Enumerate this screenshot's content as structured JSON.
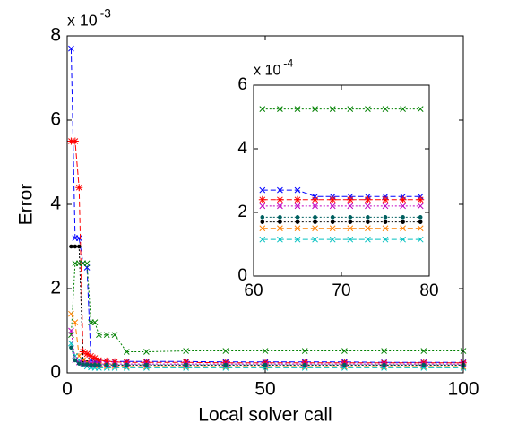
{
  "chart_data": [
    {
      "type": "line",
      "xlabel": "Local solver call",
      "ylabel": "Error",
      "y_multiplier": {
        "base": "x 10",
        "exponent": "-3"
      },
      "xlim": [
        0,
        100
      ],
      "ylim": [
        0,
        8
      ],
      "xticks": [
        0,
        50,
        100
      ],
      "yticks": [
        0,
        2,
        4,
        6,
        8
      ],
      "x": [
        1,
        2,
        3,
        4,
        5,
        6,
        7,
        8,
        10,
        12,
        15,
        20,
        30,
        40,
        50,
        60,
        70,
        80,
        90,
        100
      ],
      "series": [
        {
          "color": "#0000ff",
          "dash": "6,3",
          "marker": "x",
          "values": [
            7.7,
            3.2,
            3.2,
            2.6,
            2.5,
            0.3,
            0.28,
            0.27,
            0.27,
            0.27,
            0.27,
            0.27,
            0.27,
            0.26,
            0.26,
            0.26,
            0.26,
            0.25,
            0.25,
            0.25
          ]
        },
        {
          "color": "#ff0000",
          "dash": "6,3",
          "marker": "star",
          "values": [
            5.5,
            5.5,
            4.4,
            0.5,
            0.45,
            0.4,
            0.35,
            0.3,
            0.28,
            0.26,
            0.25,
            0.25,
            0.25,
            0.24,
            0.24,
            0.24,
            0.24,
            0.24,
            0.24,
            0.24
          ]
        },
        {
          "color": "#008000",
          "dash": "2,2",
          "marker": "x",
          "values": [
            0.9,
            2.6,
            2.6,
            2.6,
            2.6,
            1.2,
            1.2,
            0.9,
            0.9,
            0.9,
            0.5,
            0.5,
            0.52,
            0.52,
            0.52,
            0.52,
            0.52,
            0.52,
            0.52,
            0.52
          ]
        },
        {
          "color": "#000000",
          "dash": "2,2",
          "marker": "dot",
          "values": [
            3.0,
            3.0,
            3.0,
            0.3,
            0.25,
            0.2,
            0.2,
            0.19,
            0.19,
            0.18,
            0.18,
            0.18,
            0.18,
            0.18,
            0.18,
            0.18,
            0.18,
            0.18,
            0.18,
            0.18
          ]
        },
        {
          "color": "#ff8000",
          "dash": "6,3",
          "marker": "x",
          "values": [
            1.4,
            1.2,
            0.4,
            0.3,
            0.25,
            0.2,
            0.18,
            0.17,
            0.16,
            0.16,
            0.15,
            0.15,
            0.15,
            0.15,
            0.15,
            0.15,
            0.15,
            0.15,
            0.15,
            0.15
          ]
        },
        {
          "color": "#00c0c0",
          "dash": "6,3",
          "marker": "x",
          "values": [
            0.7,
            0.4,
            0.3,
            0.2,
            0.15,
            0.13,
            0.12,
            0.12,
            0.12,
            0.12,
            0.12,
            0.12,
            0.12,
            0.12,
            0.12,
            0.12,
            0.12,
            0.12,
            0.12,
            0.12
          ]
        },
        {
          "color": "#c000c0",
          "dash": "2,2",
          "marker": "x",
          "values": [
            1.0,
            0.3,
            0.25,
            0.23,
            0.22,
            0.22,
            0.21,
            0.21,
            0.21,
            0.21,
            0.21,
            0.21,
            0.21,
            0.21,
            0.21,
            0.21,
            0.21,
            0.21,
            0.21,
            0.21
          ]
        },
        {
          "color": "#006060",
          "dash": "2,2",
          "marker": "dot",
          "values": [
            0.6,
            0.3,
            0.22,
            0.2,
            0.2,
            0.19,
            0.19,
            0.19,
            0.19,
            0.19,
            0.19,
            0.19,
            0.19,
            0.19,
            0.19,
            0.19,
            0.19,
            0.19,
            0.19,
            0.19
          ]
        }
      ]
    },
    {
      "type": "line",
      "y_multiplier": {
        "base": "x 10",
        "exponent": "-4"
      },
      "xlim": [
        60,
        80
      ],
      "ylim": [
        0,
        6
      ],
      "xticks": [
        60,
        70,
        80
      ],
      "yticks": [
        0,
        2,
        4,
        6
      ],
      "x": [
        61,
        63,
        65,
        67,
        69,
        71,
        73,
        75,
        77,
        79
      ],
      "series": [
        {
          "color": "#008000",
          "dash": "2,2",
          "marker": "x",
          "values": [
            5.25,
            5.25,
            5.25,
            5.25,
            5.25,
            5.25,
            5.25,
            5.25,
            5.25,
            5.25
          ]
        },
        {
          "color": "#0000ff",
          "dash": "6,3",
          "marker": "x",
          "values": [
            2.7,
            2.7,
            2.7,
            2.5,
            2.5,
            2.5,
            2.5,
            2.5,
            2.5,
            2.5
          ]
        },
        {
          "color": "#ff0000",
          "dash": "6,3",
          "marker": "star",
          "values": [
            2.4,
            2.4,
            2.4,
            2.4,
            2.4,
            2.4,
            2.4,
            2.4,
            2.4,
            2.4
          ]
        },
        {
          "color": "#c000c0",
          "dash": "2,2",
          "marker": "x",
          "values": [
            2.2,
            2.2,
            2.2,
            2.2,
            2.2,
            2.2,
            2.2,
            2.2,
            2.2,
            2.2
          ]
        },
        {
          "color": "#006060",
          "dash": "2,2",
          "marker": "dot",
          "values": [
            1.85,
            1.85,
            1.85,
            1.85,
            1.85,
            1.85,
            1.85,
            1.85,
            1.85,
            1.85
          ]
        },
        {
          "color": "#000000",
          "dash": "2,2",
          "marker": "dot",
          "values": [
            1.7,
            1.7,
            1.7,
            1.7,
            1.7,
            1.7,
            1.7,
            1.7,
            1.7,
            1.7
          ]
        },
        {
          "color": "#ff8000",
          "dash": "6,3",
          "marker": "x",
          "values": [
            1.5,
            1.5,
            1.5,
            1.5,
            1.5,
            1.5,
            1.5,
            1.5,
            1.5,
            1.5
          ]
        },
        {
          "color": "#00c0c0",
          "dash": "6,3",
          "marker": "x",
          "values": [
            1.15,
            1.15,
            1.15,
            1.15,
            1.15,
            1.15,
            1.15,
            1.15,
            1.15,
            1.15
          ]
        }
      ]
    }
  ]
}
